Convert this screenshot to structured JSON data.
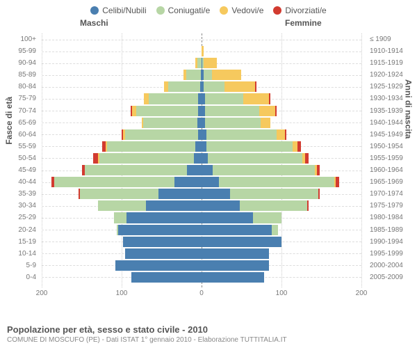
{
  "legend": [
    {
      "label": "Celibi/Nubili",
      "color": "#4a7fb0"
    },
    {
      "label": "Coniugati/e",
      "color": "#b7d6a5"
    },
    {
      "label": "Vedovi/e",
      "color": "#f6c95e"
    },
    {
      "label": "Divorziati/e",
      "color": "#d23b30"
    }
  ],
  "headers": {
    "male": "Maschi",
    "female": "Femmine"
  },
  "axis": {
    "left_title": "Fasce di età",
    "right_title": "Anni di nascita",
    "xlim_abs": 200,
    "xticks": [
      200,
      100,
      0,
      100,
      200
    ]
  },
  "title": "Popolazione per età, sesso e stato civile - 2010",
  "subtitle": "COMUNE DI MOSCUFO (PE) - Dati ISTAT 1° gennaio 2010 - Elaborazione TUTTITALIA.IT",
  "rows": [
    {
      "age": "100+",
      "birth": "≤ 1909",
      "m": [
        0,
        0,
        0,
        0
      ],
      "f": [
        0,
        0,
        0,
        0
      ]
    },
    {
      "age": "95-99",
      "birth": "1910-1914",
      "m": [
        0,
        0,
        0,
        0
      ],
      "f": [
        0,
        0,
        3,
        0
      ]
    },
    {
      "age": "90-94",
      "birth": "1915-1919",
      "m": [
        0,
        5,
        3,
        0
      ],
      "f": [
        1,
        2,
        16,
        0
      ]
    },
    {
      "age": "85-89",
      "birth": "1920-1924",
      "m": [
        1,
        18,
        4,
        0
      ],
      "f": [
        3,
        10,
        37,
        0
      ]
    },
    {
      "age": "80-84",
      "birth": "1925-1929",
      "m": [
        2,
        40,
        5,
        0
      ],
      "f": [
        3,
        26,
        38,
        2
      ]
    },
    {
      "age": "75-79",
      "birth": "1930-1934",
      "m": [
        4,
        62,
        6,
        0
      ],
      "f": [
        4,
        48,
        32,
        2
      ]
    },
    {
      "age": "70-74",
      "birth": "1935-1939",
      "m": [
        4,
        78,
        5,
        2
      ],
      "f": [
        4,
        68,
        20,
        2
      ]
    },
    {
      "age": "65-69",
      "birth": "1940-1944",
      "m": [
        5,
        68,
        2,
        0
      ],
      "f": [
        4,
        70,
        12,
        0
      ]
    },
    {
      "age": "60-64",
      "birth": "1945-1949",
      "m": [
        4,
        92,
        2,
        2
      ],
      "f": [
        6,
        88,
        10,
        2
      ]
    },
    {
      "age": "55-59",
      "birth": "1950-1954",
      "m": [
        8,
        110,
        2,
        4
      ],
      "f": [
        6,
        108,
        6,
        4
      ]
    },
    {
      "age": "50-54",
      "birth": "1955-1959",
      "m": [
        10,
        118,
        2,
        6
      ],
      "f": [
        8,
        118,
        4,
        4
      ]
    },
    {
      "age": "45-49",
      "birth": "1960-1964",
      "m": [
        18,
        128,
        0,
        4
      ],
      "f": [
        14,
        128,
        2,
        4
      ]
    },
    {
      "age": "40-44",
      "birth": "1965-1969",
      "m": [
        34,
        150,
        0,
        4
      ],
      "f": [
        22,
        144,
        2,
        4
      ]
    },
    {
      "age": "35-39",
      "birth": "1970-1974",
      "m": [
        54,
        98,
        0,
        2
      ],
      "f": [
        36,
        110,
        0,
        2
      ]
    },
    {
      "age": "30-34",
      "birth": "1975-1979",
      "m": [
        70,
        60,
        0,
        0
      ],
      "f": [
        48,
        84,
        0,
        2
      ]
    },
    {
      "age": "25-29",
      "birth": "1980-1984",
      "m": [
        94,
        16,
        0,
        0
      ],
      "f": [
        64,
        36,
        0,
        0
      ]
    },
    {
      "age": "20-24",
      "birth": "1985-1989",
      "m": [
        104,
        2,
        0,
        0
      ],
      "f": [
        88,
        8,
        0,
        0
      ]
    },
    {
      "age": "15-19",
      "birth": "1990-1994",
      "m": [
        98,
        0,
        0,
        0
      ],
      "f": [
        100,
        0,
        0,
        0
      ]
    },
    {
      "age": "10-14",
      "birth": "1995-1999",
      "m": [
        96,
        0,
        0,
        0
      ],
      "f": [
        84,
        0,
        0,
        0
      ]
    },
    {
      "age": "5-9",
      "birth": "2000-2004",
      "m": [
        108,
        0,
        0,
        0
      ],
      "f": [
        84,
        0,
        0,
        0
      ]
    },
    {
      "age": "0-4",
      "birth": "2005-2009",
      "m": [
        88,
        0,
        0,
        0
      ],
      "f": [
        78,
        0,
        0,
        0
      ]
    }
  ],
  "style": {
    "background": "#ffffff",
    "grid_dash": "#cccccc",
    "center_dash": "#888888",
    "row_dash": "#dddddd",
    "label_color": "#777777",
    "header_color": "#555555"
  }
}
